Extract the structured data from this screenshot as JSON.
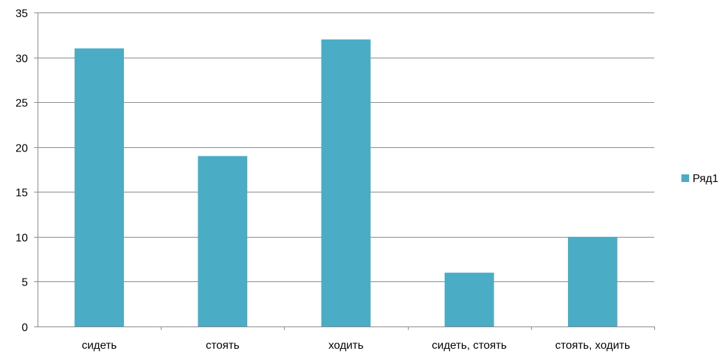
{
  "chart_data": {
    "type": "bar",
    "categories": [
      "сидеть",
      "стоять",
      "ходить",
      "сидеть, стоять",
      "стоять, ходить"
    ],
    "series": [
      {
        "name": "Ряд1",
        "values": [
          31,
          19,
          32,
          6,
          10
        ]
      }
    ],
    "ylim": [
      0,
      35
    ],
    "yticks": [
      0,
      5,
      10,
      15,
      20,
      25,
      30,
      35
    ],
    "grid": true,
    "legend_position": "right",
    "colors": {
      "bar": "#4BACC6",
      "grid": "#868686",
      "axis": "#868686"
    }
  }
}
